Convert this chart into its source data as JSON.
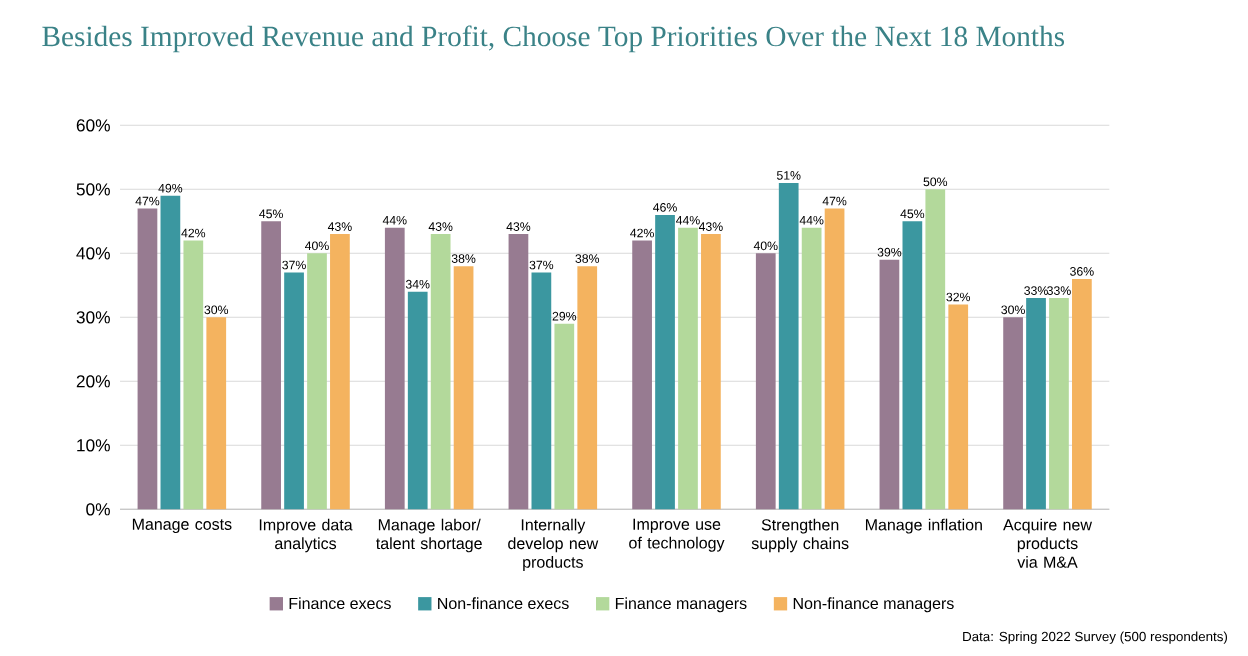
{
  "chart_data": {
    "type": "bar",
    "title": "Besides Improved Revenue and Profit, Choose Top Priorities Over the Next 18 Months",
    "categories": [
      "Manage costs",
      "Improve data analytics",
      "Manage labor/ talent shortage",
      "Internally develop new products",
      "Improve use of technology",
      "Strengthen supply chains",
      "Manage inflation",
      "Acquire new products via M&A"
    ],
    "series": [
      {
        "name": "Finance execs",
        "color": "#977b91",
        "values": [
          47,
          45,
          44,
          43,
          42,
          40,
          39,
          30
        ],
        "value_labels": [
          "47%",
          "45%",
          "44%",
          "43%",
          "42%",
          "40%",
          "39%",
          "30%"
        ]
      },
      {
        "name": "Non-finance execs",
        "color": "#3b97a0",
        "values": [
          49,
          37,
          34,
          37,
          46,
          51,
          45,
          33
        ],
        "value_labels": [
          "49%",
          "37%",
          "34%",
          "37%",
          "46%",
          "51%",
          "45%",
          "33%"
        ]
      },
      {
        "name": "Finance managers",
        "color": "#b3d99b",
        "values": [
          42,
          40,
          43,
          29,
          44,
          44,
          50,
          33
        ],
        "value_labels": [
          "42%",
          "40%",
          "43%",
          "29%",
          "44%",
          "44%",
          "50%",
          "33%"
        ]
      },
      {
        "name": "Non-finance managers",
        "color": "#f4b35f",
        "values": [
          30,
          43,
          38,
          38,
          43,
          47,
          32,
          36
        ],
        "value_labels": [
          "30%",
          "43%",
          "38%",
          "38%",
          "43%",
          "47%",
          "32%",
          "36%"
        ]
      }
    ],
    "ylim": [
      0,
      60
    ],
    "yticks": [
      {
        "value": 0,
        "label": "0%"
      },
      {
        "value": 10,
        "label": "10%"
      },
      {
        "value": 20,
        "label": "20%"
      },
      {
        "value": 30,
        "label": "30%"
      },
      {
        "value": 40,
        "label": "40%"
      },
      {
        "value": 50,
        "label": "50%"
      },
      {
        "value": 60,
        "label": "60%"
      }
    ],
    "grid": "y",
    "legend": "bottom",
    "annotations": [
      "Data: Spring 2022 Survey (500 respondents)"
    ]
  }
}
